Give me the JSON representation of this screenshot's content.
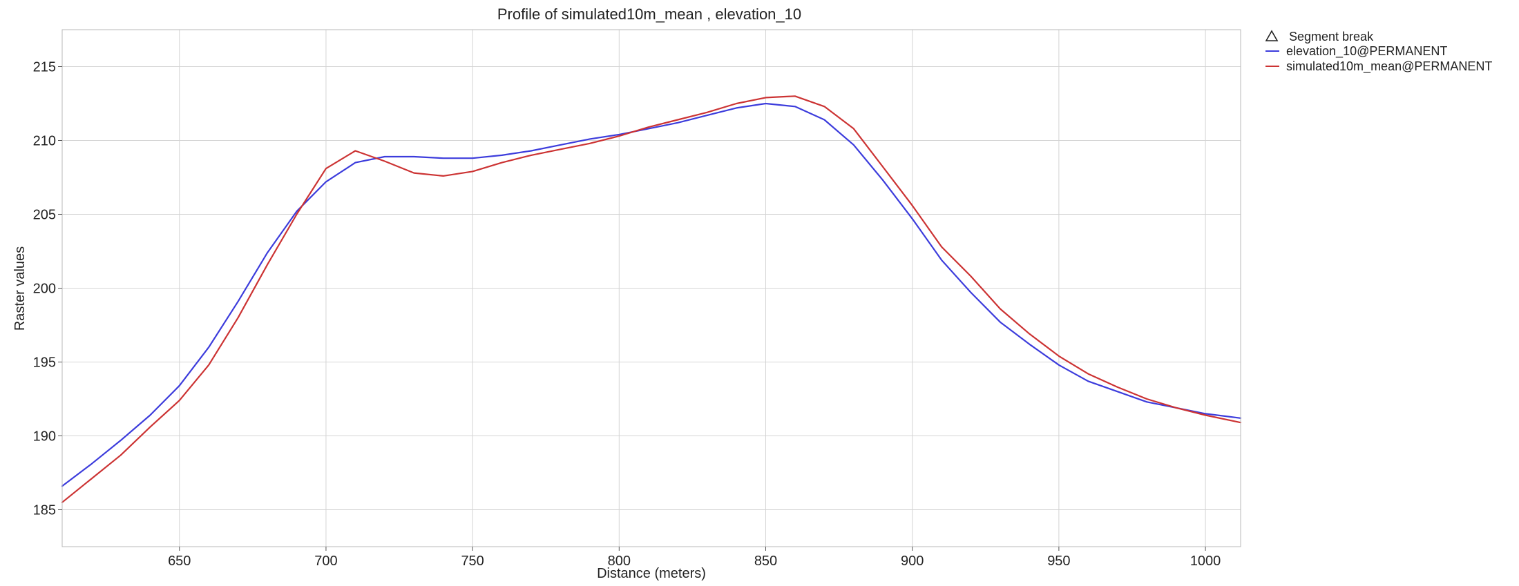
{
  "chart_data": {
    "type": "line",
    "title": "Profile of simulated10m_mean , elevation_10",
    "xlabel": "Distance (meters)",
    "ylabel": "Raster values",
    "xlim": [
      610,
      1012
    ],
    "ylim": [
      182.5,
      217.5
    ],
    "xticks": [
      650,
      700,
      750,
      800,
      850,
      900,
      950,
      1000
    ],
    "yticks": [
      185,
      190,
      195,
      200,
      205,
      210,
      215
    ],
    "grid": true,
    "legend_position": "right",
    "legend": {
      "segment_break_label": "Segment break",
      "entries": [
        "elevation_10@PERMANENT",
        "simulated10m_mean@PERMANENT"
      ]
    },
    "series": [
      {
        "name": "elevation_10@PERMANENT",
        "color": "#3c3cdc",
        "x": [
          610,
          620,
          630,
          640,
          650,
          660,
          670,
          680,
          690,
          700,
          710,
          720,
          730,
          740,
          750,
          760,
          770,
          780,
          790,
          800,
          810,
          820,
          830,
          840,
          850,
          860,
          870,
          880,
          890,
          900,
          910,
          920,
          930,
          940,
          950,
          960,
          970,
          980,
          990,
          1000,
          1012
        ],
        "values": [
          186.6,
          188.1,
          189.7,
          191.4,
          193.4,
          196.0,
          199.1,
          202.4,
          205.2,
          207.2,
          208.5,
          208.9,
          208.9,
          208.8,
          208.8,
          209.0,
          209.3,
          209.7,
          210.1,
          210.4,
          210.8,
          211.2,
          211.7,
          212.2,
          212.5,
          212.3,
          211.4,
          209.7,
          207.3,
          204.7,
          201.9,
          199.7,
          197.7,
          196.2,
          194.8,
          193.7,
          193.0,
          192.3,
          191.9,
          191.5,
          191.2
        ]
      },
      {
        "name": "simulated10m_mean@PERMANENT",
        "color": "#cc3333",
        "x": [
          610,
          620,
          630,
          640,
          650,
          660,
          670,
          680,
          690,
          700,
          710,
          720,
          730,
          740,
          750,
          760,
          770,
          780,
          790,
          800,
          810,
          820,
          830,
          840,
          850,
          860,
          870,
          880,
          890,
          900,
          910,
          920,
          930,
          940,
          950,
          960,
          970,
          980,
          990,
          1000,
          1012
        ],
        "values": [
          185.5,
          187.1,
          188.7,
          190.6,
          192.4,
          194.8,
          198.0,
          201.6,
          205.0,
          208.1,
          209.3,
          208.6,
          207.8,
          207.6,
          207.9,
          208.5,
          209.0,
          209.4,
          209.8,
          210.3,
          210.9,
          211.4,
          211.9,
          212.5,
          212.9,
          213.0,
          212.3,
          210.8,
          208.2,
          205.6,
          202.8,
          200.8,
          198.6,
          196.9,
          195.4,
          194.2,
          193.3,
          192.5,
          191.9,
          191.4,
          190.9
        ]
      }
    ]
  }
}
